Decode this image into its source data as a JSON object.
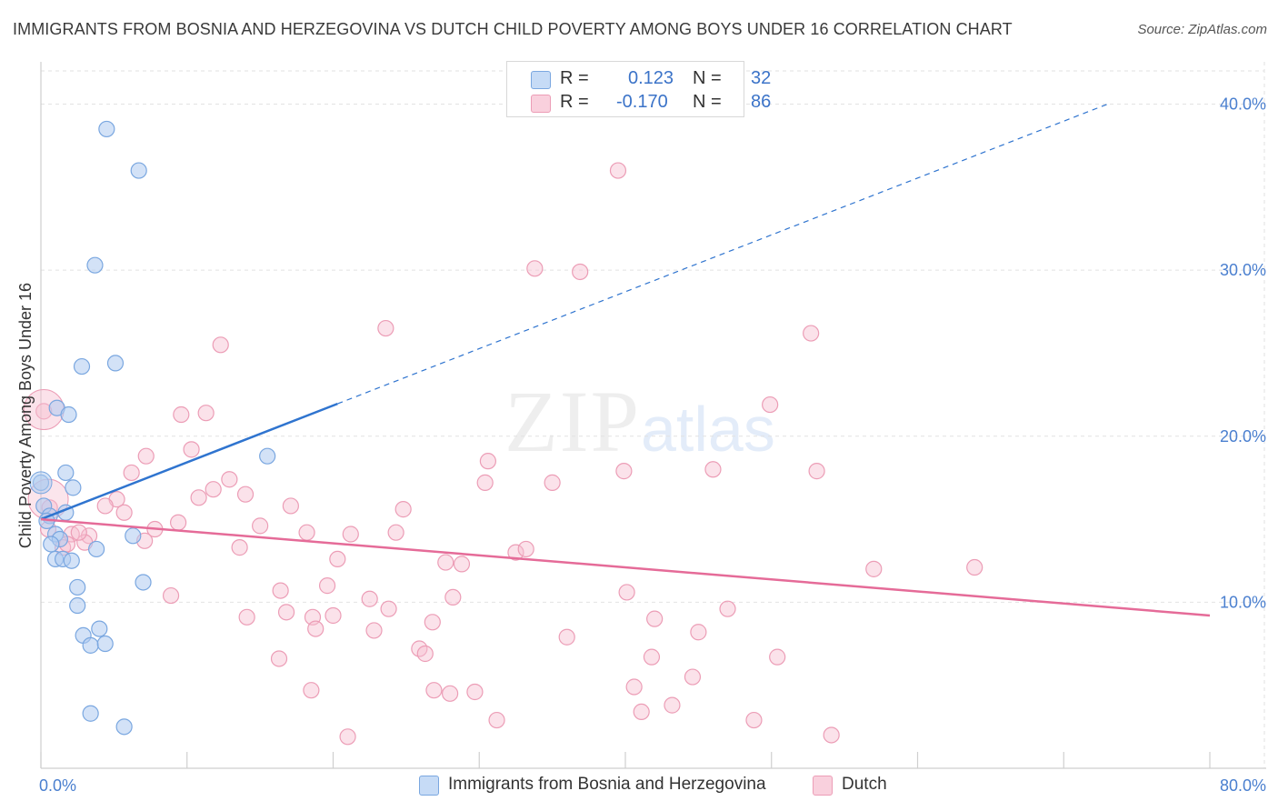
{
  "title": "IMMIGRANTS FROM BOSNIA AND HERZEGOVINA VS DUTCH CHILD POVERTY AMONG BOYS UNDER 16 CORRELATION CHART",
  "source": "Source: ZipAtlas.com",
  "watermark": {
    "zip": "ZIP",
    "atlas": "atlas"
  },
  "stats_legend": {
    "rows": [
      {
        "r_label": "R =",
        "r_value": "0.123",
        "n_label": "N =",
        "n_value": "32"
      },
      {
        "r_label": "R =",
        "r_value": "-0.170",
        "n_label": "N =",
        "n_value": "86"
      }
    ]
  },
  "colors": {
    "blue_fill": "#aecbf0",
    "blue_stroke": "#7aa7e0",
    "blue_line": "#2f74cf",
    "pink_fill": "#f6bfd0",
    "pink_stroke": "#ec9db6",
    "pink_line": "#e56b98",
    "axis_text": "#4a7fcf",
    "grid": "#e2e2e2"
  },
  "chart_data": {
    "type": "scatter",
    "xlabel": "",
    "ylabel": "Child Poverty Among Boys Under 16",
    "xlim": [
      0,
      80
    ],
    "ylim": [
      0,
      42
    ],
    "x_tick_labels": [
      {
        "value": 0,
        "label": "0.0%"
      },
      {
        "value": 80,
        "label": "80.0%"
      }
    ],
    "y_tick_labels": [
      {
        "value": 10,
        "label": "10.0%"
      },
      {
        "value": 20,
        "label": "20.0%"
      },
      {
        "value": 30,
        "label": "30.0%"
      },
      {
        "value": 40,
        "label": "40.0%"
      }
    ],
    "grid": true,
    "legend_position": "bottom",
    "series": [
      {
        "name": "Immigrants from Bosnia and Herzegovina",
        "color": "#aecbf0",
        "points": [
          [
            4.5,
            38.5
          ],
          [
            6.7,
            36.0
          ],
          [
            3.7,
            30.3
          ],
          [
            2.8,
            24.2
          ],
          [
            5.1,
            24.4
          ],
          [
            1.1,
            21.7
          ],
          [
            1.9,
            21.3
          ],
          [
            15.5,
            18.8
          ],
          [
            1.7,
            17.8
          ],
          [
            2.2,
            16.9
          ],
          [
            0.0,
            17.2
          ],
          [
            0.2,
            15.8
          ],
          [
            0.6,
            15.2
          ],
          [
            1.7,
            15.4
          ],
          [
            0.4,
            14.9
          ],
          [
            1.0,
            14.1
          ],
          [
            1.3,
            13.8
          ],
          [
            0.7,
            13.5
          ],
          [
            3.8,
            13.2
          ],
          [
            6.3,
            14.0
          ],
          [
            1.0,
            12.6
          ],
          [
            1.5,
            12.6
          ],
          [
            2.1,
            12.5
          ],
          [
            2.5,
            10.9
          ],
          [
            7.0,
            11.2
          ],
          [
            2.5,
            9.8
          ],
          [
            4.0,
            8.4
          ],
          [
            2.9,
            8.0
          ],
          [
            3.4,
            7.4
          ],
          [
            4.4,
            7.5
          ],
          [
            3.4,
            3.3
          ],
          [
            5.7,
            2.5
          ]
        ]
      },
      {
        "name": "Dutch",
        "color": "#f6bfd0",
        "points": [
          [
            39.5,
            36.0
          ],
          [
            33.8,
            30.1
          ],
          [
            36.9,
            29.9
          ],
          [
            23.6,
            26.5
          ],
          [
            52.7,
            26.2
          ],
          [
            12.3,
            25.5
          ],
          [
            11.3,
            21.4
          ],
          [
            9.6,
            21.3
          ],
          [
            0.2,
            21.5
          ],
          [
            49.9,
            21.9
          ],
          [
            7.2,
            18.8
          ],
          [
            10.3,
            19.2
          ],
          [
            6.2,
            17.8
          ],
          [
            30.6,
            18.5
          ],
          [
            39.9,
            17.9
          ],
          [
            46.0,
            18.0
          ],
          [
            53.1,
            17.9
          ],
          [
            12.9,
            17.4
          ],
          [
            11.8,
            16.8
          ],
          [
            10.8,
            16.3
          ],
          [
            14.0,
            16.5
          ],
          [
            30.4,
            17.2
          ],
          [
            35.0,
            17.2
          ],
          [
            5.2,
            16.2
          ],
          [
            4.4,
            15.8
          ],
          [
            0.6,
            15.7
          ],
          [
            5.7,
            15.4
          ],
          [
            17.1,
            15.8
          ],
          [
            24.8,
            15.6
          ],
          [
            9.4,
            14.8
          ],
          [
            15.0,
            14.6
          ],
          [
            7.8,
            14.4
          ],
          [
            2.1,
            14.1
          ],
          [
            3.3,
            14.0
          ],
          [
            18.2,
            14.2
          ],
          [
            21.2,
            14.1
          ],
          [
            24.3,
            14.2
          ],
          [
            3.0,
            13.6
          ],
          [
            7.1,
            13.7
          ],
          [
            13.6,
            13.3
          ],
          [
            32.5,
            13.0
          ],
          [
            1.5,
            13.3
          ],
          [
            33.2,
            13.2
          ],
          [
            20.3,
            12.6
          ],
          [
            27.7,
            12.4
          ],
          [
            28.8,
            12.3
          ],
          [
            57.0,
            12.0
          ],
          [
            63.9,
            12.1
          ],
          [
            16.4,
            10.7
          ],
          [
            19.6,
            11.0
          ],
          [
            8.9,
            10.4
          ],
          [
            22.5,
            10.2
          ],
          [
            28.2,
            10.3
          ],
          [
            40.1,
            10.6
          ],
          [
            14.1,
            9.1
          ],
          [
            16.8,
            9.4
          ],
          [
            18.6,
            9.1
          ],
          [
            20.0,
            9.2
          ],
          [
            23.8,
            9.6
          ],
          [
            26.8,
            8.8
          ],
          [
            47.0,
            9.6
          ],
          [
            18.8,
            8.4
          ],
          [
            22.8,
            8.3
          ],
          [
            36.0,
            7.9
          ],
          [
            45.0,
            8.2
          ],
          [
            25.9,
            7.2
          ],
          [
            26.3,
            6.9
          ],
          [
            16.3,
            6.6
          ],
          [
            41.8,
            6.7
          ],
          [
            50.4,
            6.7
          ],
          [
            42.0,
            9.0
          ],
          [
            44.6,
            5.5
          ],
          [
            40.6,
            4.9
          ],
          [
            26.9,
            4.7
          ],
          [
            18.5,
            4.7
          ],
          [
            28.0,
            4.5
          ],
          [
            29.7,
            4.6
          ],
          [
            43.2,
            3.8
          ],
          [
            41.1,
            3.4
          ],
          [
            31.2,
            2.9
          ],
          [
            48.8,
            2.9
          ],
          [
            54.1,
            2.0
          ],
          [
            21.0,
            1.9
          ],
          [
            1.8,
            13.5
          ],
          [
            0.5,
            14.4
          ],
          [
            2.6,
            14.2
          ]
        ]
      }
    ],
    "trend_lines": [
      {
        "series": "Immigrants from Bosnia and Herzegovina",
        "x_start": 0,
        "y_start": 15.0,
        "x_solid_end": 20.3,
        "x_end": 73.0,
        "y_end": 40.0,
        "style": "solid then dashed"
      },
      {
        "series": "Dutch",
        "x_start": 0,
        "y_start": 15.0,
        "x_end": 80,
        "y_end": 9.2,
        "style": "solid"
      }
    ]
  }
}
